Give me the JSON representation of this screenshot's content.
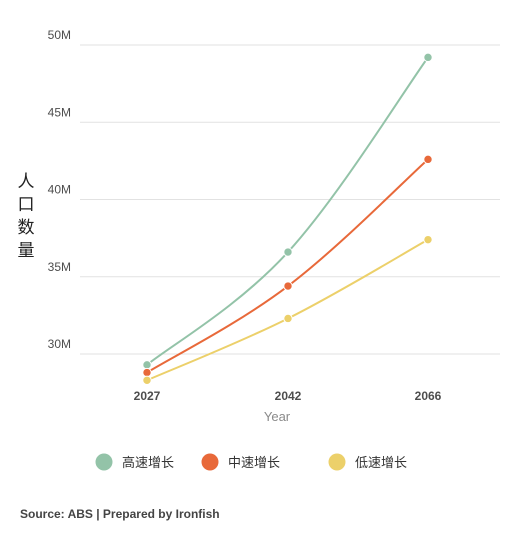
{
  "chart_data": {
    "type": "line",
    "x": [
      "2027",
      "2042",
      "2066"
    ],
    "xlabel": "Year",
    "ylabel": "人口数量",
    "ylim": [
      27.8,
      50.5
    ],
    "yticks": [
      {
        "value": 30,
        "label": "30M"
      },
      {
        "value": 35,
        "label": "35M"
      },
      {
        "value": 40,
        "label": "40M"
      },
      {
        "value": 45,
        "label": "45M"
      },
      {
        "value": 50,
        "label": "50M"
      }
    ],
    "series": [
      {
        "name": "高速增长",
        "color": "#93c3a8",
        "values": [
          29.3,
          36.6,
          49.2
        ]
      },
      {
        "name": "中速增长",
        "color": "#e8693a",
        "values": [
          28.8,
          34.4,
          42.6
        ]
      },
      {
        "name": "低速增长",
        "color": "#ecd06a",
        "values": [
          28.3,
          32.3,
          37.4
        ]
      }
    ],
    "grid": true,
    "legend_position": "bottom"
  },
  "source_text": "Source: ABS | Prepared by Ironfish"
}
